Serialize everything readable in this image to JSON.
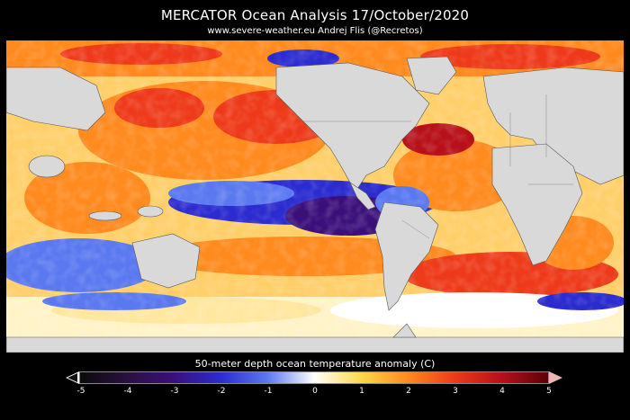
{
  "header": {
    "title": "MERCATOR Ocean Analysis    17/October/2020",
    "subtitle": "www.severe-weather.eu    Andrej Flis (@Recretos)"
  },
  "map": {
    "land_color": "#d9d9d9",
    "border_color": "#555555"
  },
  "colorbar": {
    "title": "50-meter depth    ocean temperature anomaly (C)",
    "ticks": [
      "-5",
      "-4",
      "-3",
      "-2",
      "-1",
      "0",
      "1",
      "2",
      "3",
      "4",
      "5"
    ],
    "colors": [
      "#0a0a0a",
      "#2a1040",
      "#3b0f7a",
      "#2b2bd0",
      "#5a78f0",
      "#ffffff",
      "#ffd84a",
      "#ff8a1e",
      "#ee3a1a",
      "#b8101a",
      "#5a0008"
    ]
  }
}
